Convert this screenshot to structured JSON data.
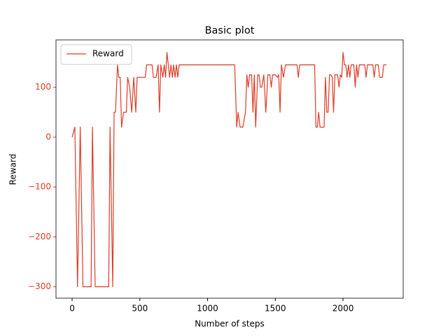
{
  "chart_data": {
    "type": "line",
    "title": "Basic plot",
    "xlabel": "Number of steps",
    "ylabel": "Reward",
    "x": [
      0,
      20,
      40,
      60,
      80,
      100,
      120,
      140,
      150,
      170,
      200,
      240,
      270,
      280,
      300,
      310,
      320,
      335,
      345,
      355,
      365,
      380,
      400,
      410,
      425,
      440,
      455,
      470,
      480,
      500,
      520,
      540,
      550,
      590,
      600,
      620,
      635,
      645,
      655,
      670,
      680,
      690,
      700,
      710,
      720,
      730,
      740,
      750,
      760,
      770,
      780,
      790,
      800,
      1200,
      1215,
      1225,
      1240,
      1260,
      1280,
      1290,
      1300,
      1310,
      1325,
      1335,
      1345,
      1355,
      1370,
      1380,
      1390,
      1400,
      1415,
      1430,
      1445,
      1460,
      1470,
      1480,
      1500,
      1515,
      1525,
      1535,
      1545,
      1560,
      1575,
      1590,
      1610,
      1625,
      1640,
      1660,
      1670,
      1680,
      1700,
      1720,
      1740,
      1760,
      1790,
      1800,
      1810,
      1820,
      1830,
      1850,
      1860,
      1870,
      1880,
      1890,
      1900,
      1910,
      1920,
      1930,
      1940,
      1960,
      1970,
      1980,
      1990,
      2000,
      2010,
      2020,
      2030,
      2040,
      2050,
      2060,
      2080,
      2090,
      2100,
      2110,
      2120,
      2160,
      2170,
      2180,
      2220,
      2230,
      2240,
      2260,
      2270,
      2290,
      2300,
      2320
    ],
    "series": [
      {
        "name": "Reward",
        "color": "#dc3b26",
        "values": [
          0,
          20,
          -300,
          20,
          -300,
          -300,
          -300,
          -300,
          20,
          -300,
          -300,
          -300,
          -300,
          20,
          -300,
          50,
          50,
          145,
          120,
          120,
          20,
          50,
          50,
          120,
          100,
          50,
          120,
          50,
          120,
          120,
          120,
          120,
          145,
          145,
          120,
          120,
          145,
          50,
          145,
          120,
          145,
          120,
          170,
          145,
          120,
          145,
          120,
          145,
          120,
          145,
          120,
          145,
          145,
          145,
          20,
          50,
          20,
          20,
          50,
          125,
          100,
          125,
          125,
          50,
          125,
          20,
          125,
          125,
          100,
          100,
          125,
          50,
          125,
          125,
          100,
          125,
          125,
          120,
          125,
          50,
          145,
          120,
          145,
          145,
          145,
          145,
          145,
          145,
          120,
          145,
          145,
          145,
          145,
          145,
          145,
          20,
          20,
          50,
          20,
          20,
          20,
          120,
          50,
          50,
          125,
          125,
          120,
          50,
          125,
          125,
          100,
          125,
          120,
          170,
          145,
          145,
          120,
          145,
          120,
          145,
          145,
          100,
          145,
          120,
          145,
          145,
          120,
          145,
          145,
          120,
          145,
          145,
          120,
          120,
          145,
          145
        ]
      }
    ],
    "xlim": [
      -119,
      2444
    ],
    "ylim": [
      -323,
      195
    ],
    "xticks": [
      0,
      500,
      1000,
      1500,
      2000
    ],
    "yticks": [
      {
        "value": -300,
        "label": "−300"
      },
      {
        "value": -200,
        "label": "−200"
      },
      {
        "value": -100,
        "label": "−100"
      },
      0,
      100
    ],
    "legend": "upper left",
    "grid": false
  }
}
